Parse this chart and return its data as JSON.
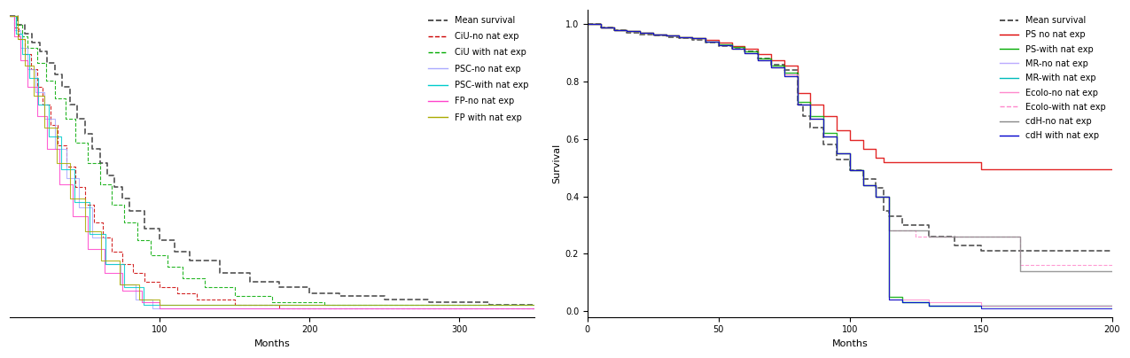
{
  "left_panel": {
    "xlabel": "Months",
    "xlim": [
      0,
      350
    ],
    "ylim": [
      -0.02,
      1.02
    ],
    "xticks": [
      100,
      200,
      300
    ],
    "series": [
      {
        "label": "Mean survival",
        "color": "#333333",
        "linestyle": "--",
        "lw": 1.2
      },
      {
        "label": "CiU-no nat exp",
        "color": "#cc0000",
        "linestyle": "--",
        "lw": 0.8
      },
      {
        "label": "CiU with nat exp",
        "color": "#00aa00",
        "linestyle": "--",
        "lw": 0.8
      },
      {
        "label": "PSC-no nat exp",
        "color": "#aaaaff",
        "linestyle": "-",
        "lw": 0.8
      },
      {
        "label": "PSC-with nat exp",
        "color": "#00cccc",
        "linestyle": "-",
        "lw": 0.8
      },
      {
        "label": "FP-no nat exp",
        "color": "#ff44cc",
        "linestyle": "-",
        "lw": 0.8
      },
      {
        "label": "FP with nat exp",
        "color": "#aaaa00",
        "linestyle": "-",
        "lw": 0.8
      }
    ]
  },
  "right_panel": {
    "xlabel": "Months",
    "ylabel": "Survival",
    "xlim": [
      0,
      200
    ],
    "ylim": [
      -0.02,
      1.05
    ],
    "yticks": [
      0.0,
      0.2,
      0.4,
      0.6,
      0.8,
      1.0
    ],
    "xticks": [
      0,
      50,
      100,
      150,
      200
    ],
    "series": [
      {
        "label": "Mean survival",
        "color": "#333333",
        "linestyle": "--",
        "lw": 1.2
      },
      {
        "label": "PS no nat exp",
        "color": "#dd0000",
        "linestyle": "-",
        "lw": 1.0
      },
      {
        "label": "PS-with nat exp",
        "color": "#00aa00",
        "linestyle": "-",
        "lw": 1.0
      },
      {
        "label": "MR-no nat exp",
        "color": "#bbaaff",
        "linestyle": "-",
        "lw": 0.8
      },
      {
        "label": "MR-with nat exp",
        "color": "#00bbbb",
        "linestyle": "-",
        "lw": 0.8
      },
      {
        "label": "Ecolo-no nat exp",
        "color": "#ff88cc",
        "linestyle": "-",
        "lw": 0.8
      },
      {
        "label": "Ecolo-with nat exp",
        "color": "#ff88cc",
        "linestyle": "--",
        "lw": 0.8
      },
      {
        "label": "cdH-no nat exp",
        "color": "#888888",
        "linestyle": "-",
        "lw": 1.0
      },
      {
        "label": "cdH with nat exp",
        "color": "#0000cc",
        "linestyle": "-",
        "lw": 0.8
      }
    ]
  },
  "bg_color": "#ffffff",
  "font_size": 7
}
